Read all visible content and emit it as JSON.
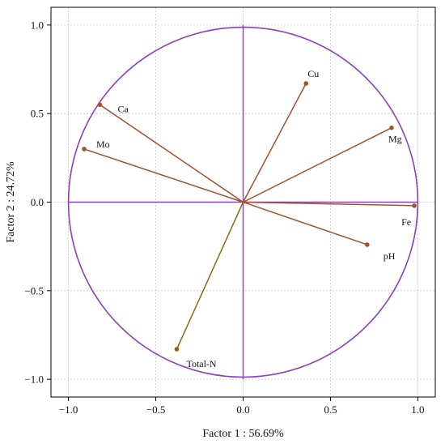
{
  "chart_data": {
    "type": "scatter",
    "subtype": "correlation-circle-biplot",
    "xlabel": "Factor 1 : 56.69%",
    "ylabel": "Factor 2 : 24.72%",
    "xlim": [
      -1.1,
      1.1
    ],
    "ylim": [
      -1.1,
      1.1
    ],
    "xticks": [
      "−1.0",
      "−0.5",
      "0.0",
      "0.5",
      "1.0"
    ],
    "yticks": [
      "1.0",
      "0.5",
      "0.0",
      "−0.5",
      "−1.0"
    ],
    "grid": true,
    "circle_radius": 1.0,
    "circle_color": "#8B3FBF",
    "vector_color": "#A0522D",
    "variables": [
      {
        "name": "Cu",
        "x": 0.36,
        "y": 0.67
      },
      {
        "name": "Ca",
        "x": -0.82,
        "y": 0.55
      },
      {
        "name": "Mo",
        "x": -0.91,
        "y": 0.3
      },
      {
        "name": "Mg",
        "x": 0.85,
        "y": 0.42
      },
      {
        "name": "Fe",
        "x": 0.98,
        "y": -0.02
      },
      {
        "name": "pH",
        "x": 0.71,
        "y": -0.24
      },
      {
        "name": "Total-N",
        "x": -0.38,
        "y": -0.83
      }
    ]
  }
}
